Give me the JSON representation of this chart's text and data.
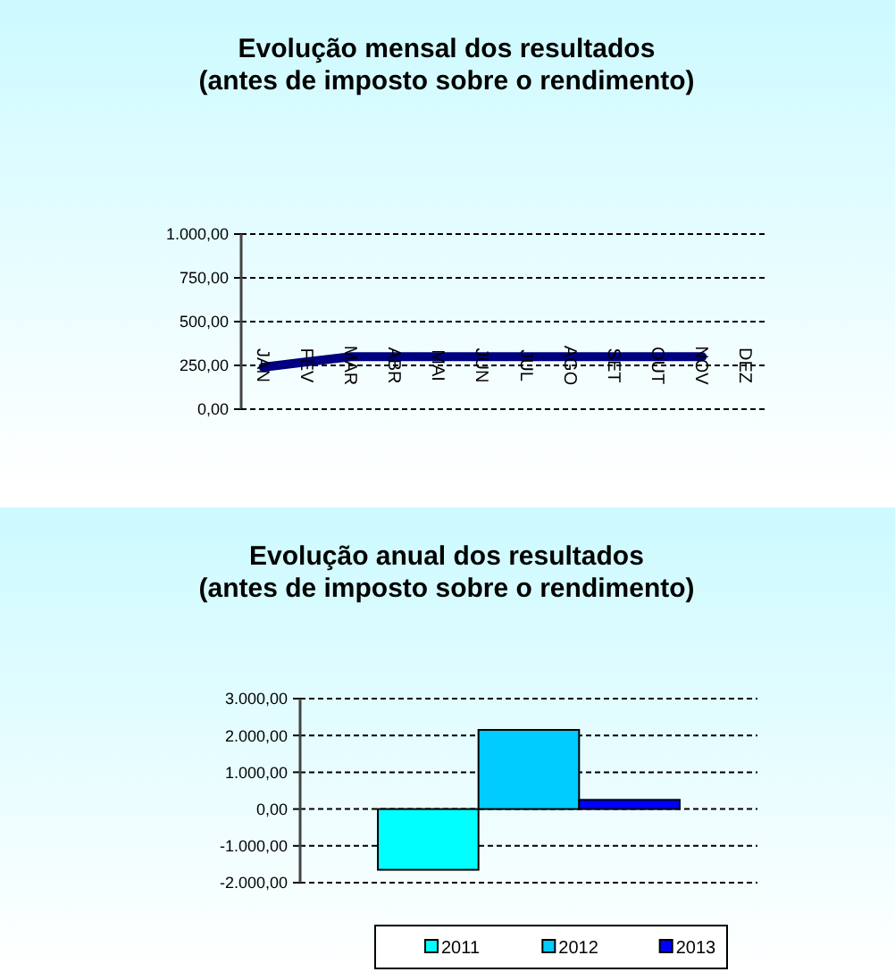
{
  "chart_data": [
    {
      "type": "line",
      "title": "Evolução mensal dos resultados\n(antes de imposto sobre o rendimento)",
      "categories": [
        "JAN",
        "FEV",
        "MAR",
        "ABR",
        "MAI",
        "JUN",
        "JUL",
        "AGO",
        "SET",
        "OUT",
        "NOV",
        "DEZ"
      ],
      "series": [
        {
          "color": "#000080",
          "values": [
            240,
            270,
            300,
            300,
            300,
            300,
            300,
            300,
            300,
            300,
            300,
            null
          ]
        }
      ],
      "ylim": [
        0,
        1000
      ],
      "yticks": [
        {
          "value": 0,
          "label": "0,00"
        },
        {
          "value": 250,
          "label": "250,00"
        },
        {
          "value": 500,
          "label": "500,00"
        },
        {
          "value": 750,
          "label": "750,00"
        },
        {
          "value": 1000,
          "label": "1.000,00"
        }
      ],
      "grid": "y",
      "legend": false
    },
    {
      "type": "bar",
      "title": "Evolução anual dos resultados\n(antes de imposto sobre o rendimento)",
      "categories": [
        null
      ],
      "series": [
        {
          "name": "2011",
          "color": "#00ffff",
          "values": [
            -1650
          ]
        },
        {
          "name": "2012",
          "color": "#00ccff",
          "values": [
            2150
          ]
        },
        {
          "name": "2013",
          "color": "#0000ff",
          "values": [
            250
          ]
        }
      ],
      "ylim": [
        -2000,
        3000
      ],
      "yticks": [
        {
          "value": -2000,
          "label": "-2.000,00"
        },
        {
          "value": -1000,
          "label": "-1.000,00"
        },
        {
          "value": 0,
          "label": "0,00"
        },
        {
          "value": 1000,
          "label": "1.000,00"
        },
        {
          "value": 2000,
          "label": "2.000,00"
        },
        {
          "value": 3000,
          "label": "3.000,00"
        }
      ],
      "grid": "y",
      "legend": "bottom"
    }
  ]
}
